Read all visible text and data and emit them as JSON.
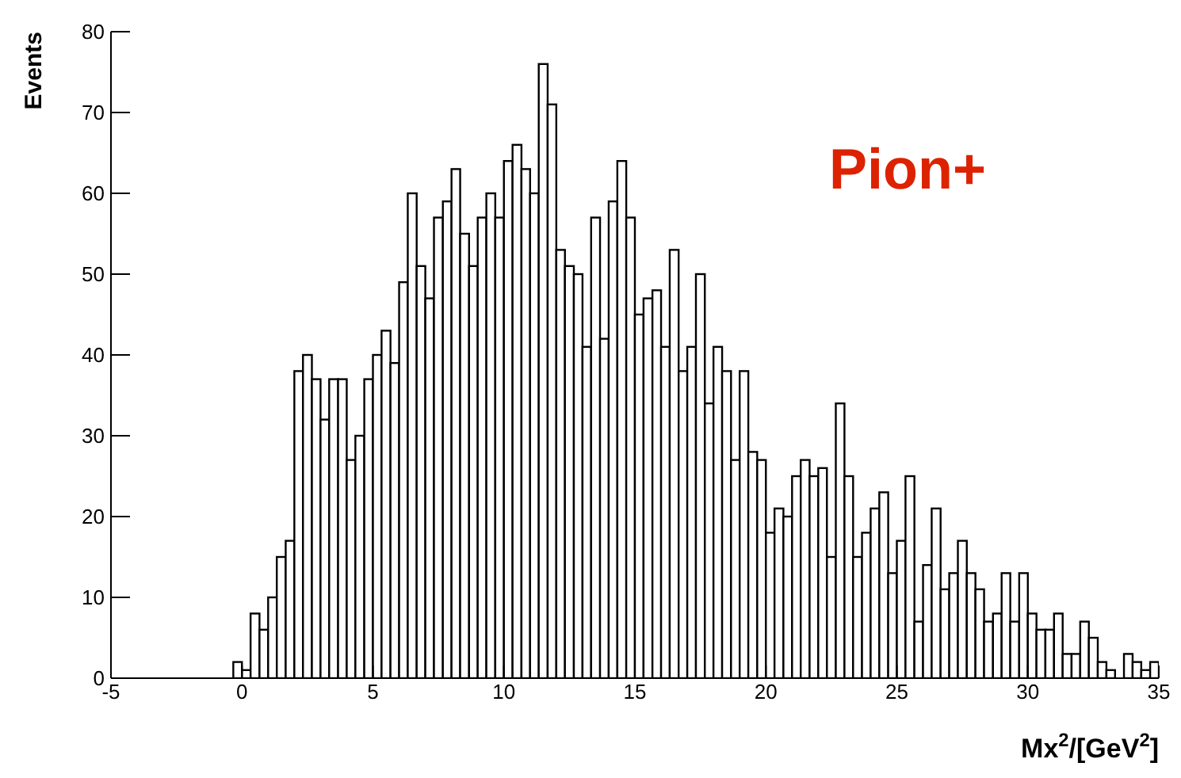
{
  "chart_data": {
    "type": "histogram",
    "xlabel": "Mx$^{2}$/[GeV$^{2}$]",
    "ylabel": "Events",
    "annotations": [
      "Pion+"
    ],
    "bins": [
      -0.33,
      0,
      0.33,
      0.67,
      1,
      1.33,
      1.67,
      2,
      2.33,
      2.67,
      3,
      3.33,
      3.67,
      4,
      4.33,
      4.67,
      5,
      5.33,
      5.67,
      6,
      6.33,
      6.67,
      7,
      7.33,
      7.67,
      8,
      8.33,
      8.67,
      9,
      9.33,
      9.67,
      10,
      10.33,
      10.67,
      11,
      11.33,
      11.67,
      12,
      12.33,
      12.67,
      13,
      13.33,
      13.67,
      14,
      14.33,
      14.67,
      15,
      15.33,
      15.67,
      16,
      16.33,
      16.67,
      17,
      17.33,
      17.67,
      18,
      18.33,
      18.67,
      19,
      19.33,
      19.67,
      20,
      20.33,
      20.67,
      21,
      21.33,
      21.67,
      22,
      22.33,
      22.67,
      23,
      23.33,
      23.67,
      24,
      24.33,
      24.67,
      25,
      25.33,
      25.67,
      26,
      26.33,
      26.67,
      27,
      27.33,
      27.67,
      28,
      28.33,
      28.67,
      29,
      29.33,
      29.67,
      30,
      30.33,
      30.67,
      31,
      31.33,
      31.67,
      32,
      32.33,
      32.67,
      33,
      33.33,
      33.67,
      34,
      34.33,
      34.67,
      35
    ],
    "values": [
      2,
      1,
      8,
      6,
      10,
      15,
      17,
      38,
      40,
      37,
      32,
      37,
      37,
      27,
      30,
      37,
      40,
      43,
      39,
      49,
      60,
      51,
      47,
      57,
      59,
      63,
      55,
      51,
      57,
      60,
      57,
      64,
      66,
      63,
      60,
      76,
      71,
      53,
      51,
      50,
      41,
      57,
      42,
      59,
      64,
      57,
      45,
      47,
      48,
      41,
      53,
      38,
      41,
      50,
      34,
      41,
      38,
      27,
      38,
      28,
      27,
      18,
      21,
      20,
      25,
      27,
      25,
      26,
      15,
      34,
      25,
      15,
      18,
      21,
      23,
      13,
      17,
      25,
      7,
      14,
      21,
      11,
      13,
      17,
      13,
      11,
      7,
      8,
      13,
      7,
      13,
      8,
      6,
      6,
      8,
      3,
      3,
      7,
      5,
      2,
      1,
      0,
      3,
      2,
      1,
      2
    ],
    "color": "#000000",
    "xlim": [
      -5,
      35
    ],
    "xticks": [
      -5,
      0,
      5,
      10,
      15,
      20,
      25,
      30,
      35
    ],
    "ylim": [
      0,
      80
    ],
    "yticks": [
      0,
      10,
      20,
      30,
      40,
      50,
      60,
      70,
      80
    ]
  }
}
